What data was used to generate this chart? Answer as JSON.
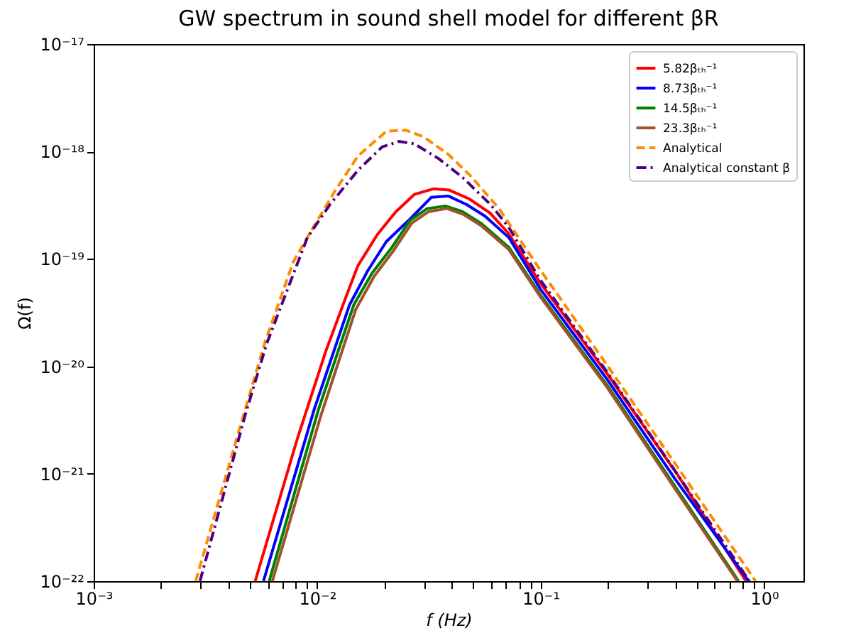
{
  "chart_data": {
    "type": "line",
    "title": "GW spectrum in sound shell model for different βR",
    "xlabel": "f (Hz)",
    "ylabel": "Ω(f)",
    "log": "xy",
    "grid": false,
    "legend": "top right",
    "marker": "none",
    "xlim": [
      0.001,
      1.5
    ],
    "ylim": [
      1e-22,
      1e-17
    ],
    "xticks": [
      {
        "value": 0.001,
        "label": "10⁻³"
      },
      {
        "value": 0.002,
        "label": null
      },
      {
        "value": 0.003,
        "label": null
      },
      {
        "value": 0.004,
        "label": null
      },
      {
        "value": 0.005,
        "label": null
      },
      {
        "value": 0.006,
        "label": null
      },
      {
        "value": 0.007,
        "label": null
      },
      {
        "value": 0.008,
        "label": null
      },
      {
        "value": 0.009,
        "label": null
      },
      {
        "value": 0.01,
        "label": "10⁻²"
      },
      {
        "value": 0.02,
        "label": null
      },
      {
        "value": 0.03,
        "label": null
      },
      {
        "value": 0.04,
        "label": null
      },
      {
        "value": 0.05,
        "label": null
      },
      {
        "value": 0.06,
        "label": null
      },
      {
        "value": 0.07,
        "label": null
      },
      {
        "value": 0.08,
        "label": null
      },
      {
        "value": 0.09,
        "label": null
      },
      {
        "value": 0.1,
        "label": "10⁻¹"
      },
      {
        "value": 0.2,
        "label": null
      },
      {
        "value": 0.3,
        "label": null
      },
      {
        "value": 0.4,
        "label": null
      },
      {
        "value": 0.5,
        "label": null
      },
      {
        "value": 0.6,
        "label": null
      },
      {
        "value": 0.7,
        "label": null
      },
      {
        "value": 0.8,
        "label": null
      },
      {
        "value": 0.9,
        "label": null
      },
      {
        "value": 1,
        "label": "10⁰"
      }
    ],
    "yticks": [
      {
        "value": 1e-22,
        "label": "10⁻²²"
      },
      {
        "value": 1e-21,
        "label": "10⁻²¹"
      },
      {
        "value": 1e-20,
        "label": "10⁻²⁰"
      },
      {
        "value": 1e-19,
        "label": "10⁻¹⁹"
      },
      {
        "value": 1e-18,
        "label": "10⁻¹⁸"
      },
      {
        "value": 1e-17,
        "label": "10⁻¹⁷"
      }
    ],
    "series": [
      {
        "name": "5.82βₜₕ⁻¹",
        "color": "#ff0000",
        "line_style": "solid",
        "x": [
          0.00528,
          0.00817,
          0.0109,
          0.01355,
          0.0152,
          0.0186,
          0.0225,
          0.0272,
          0.0333,
          0.039,
          0.0478,
          0.0594,
          0.0716,
          0.1,
          0.198,
          0.407,
          0.83
        ],
        "values": [
          1e-22,
          2.15e-21,
          1.36e-20,
          4.6e-20,
          8.6e-20,
          1.69e-19,
          2.75e-19,
          3.98e-19,
          4.5e-19,
          4.37e-19,
          3.63e-19,
          2.67e-19,
          1.74e-19,
          5.9e-20,
          8.6e-21,
          1e-21,
          1e-22
        ]
      },
      {
        "name": "8.73βₜₕ⁻¹",
        "color": "#0000ff",
        "line_style": "solid",
        "x": [
          0.00575,
          0.0097,
          0.01396,
          0.01686,
          0.0204,
          0.0261,
          0.0324,
          0.0386,
          0.0467,
          0.0564,
          0.0721,
          0.1,
          0.198,
          0.4,
          0.853
        ],
        "values": [
          1e-22,
          3.98e-21,
          3.74e-20,
          7.8e-20,
          1.45e-19,
          2.36e-19,
          3.74e-19,
          3.85e-19,
          3.2e-19,
          2.5e-19,
          1.58e-19,
          5.2e-20,
          7.6e-21,
          8.9e-22,
          1e-22
        ]
      },
      {
        "name": "14.5βₜₕ⁻¹",
        "color": "#008000",
        "line_style": "solid",
        "x": [
          0.0061,
          0.01014,
          0.01459,
          0.01762,
          0.0216,
          0.0261,
          0.031,
          0.0375,
          0.0447,
          0.054,
          0.0721,
          0.1,
          0.198,
          0.4,
          0.769
        ],
        "values": [
          1e-22,
          3.98e-21,
          3.74e-20,
          7.4e-20,
          1.28e-19,
          2.29e-19,
          2.93e-19,
          3.11e-19,
          2.75e-19,
          2.15e-19,
          1.28e-19,
          4.6e-20,
          6.7e-21,
          7.6e-22,
          1e-22
        ]
      },
      {
        "name": "23.3βₜₕ⁻¹",
        "color": "#a0522d",
        "line_style": "solid",
        "x": [
          0.0063,
          0.0104,
          0.0149,
          0.018,
          0.022,
          0.0265,
          0.0315,
          0.038,
          0.045,
          0.054,
          0.0721,
          0.1,
          0.198,
          0.4,
          0.76
        ],
        "values": [
          1e-22,
          3.5e-21,
          3.4e-20,
          6.9e-20,
          1.2e-19,
          2.15e-19,
          2.75e-19,
          2.95e-19,
          2.6e-19,
          2.05e-19,
          1.22e-19,
          4.4e-20,
          6.4e-21,
          7.2e-22,
          1e-22
        ]
      },
      {
        "name": "Analytical",
        "color": "#ff8c00",
        "line_style": "dashed",
        "x": [
          0.00286,
          0.00437,
          0.00585,
          0.00782,
          0.00944,
          0.01208,
          0.01524,
          0.0204,
          0.0249,
          0.0301,
          0.0386,
          0.0487,
          0.0652,
          0.1,
          0.198,
          0.4,
          0.916
        ],
        "values": [
          1e-22,
          2.15e-21,
          1.69e-20,
          9.4e-20,
          1.85e-19,
          4.37e-19,
          9.1e-19,
          1.54e-18,
          1.58e-18,
          1.36e-18,
          9.4e-19,
          5.9e-19,
          2.93e-19,
          7.8e-20,
          1.03e-20,
          1.24e-21,
          1e-22
        ]
      },
      {
        "name": "Analytical constant β",
        "color": "#4b0082",
        "line_style": "dashdot",
        "x": [
          0.00299,
          0.00476,
          0.00593,
          0.00904,
          0.0114,
          0.01524,
          0.0195,
          0.0232,
          0.0272,
          0.0349,
          0.0447,
          0.0597,
          0.0721,
          0.1,
          0.198,
          0.4,
          0.86
        ],
        "values": [
          1e-22,
          3.5e-21,
          1.6e-20,
          1.58e-19,
          3.2e-19,
          6.7e-19,
          1.1e-18,
          1.24e-18,
          1.18e-18,
          8.6e-19,
          5.75e-19,
          3.2e-19,
          1.96e-19,
          6.3e-20,
          8.9e-21,
          1.06e-21,
          1e-22
        ]
      }
    ]
  }
}
